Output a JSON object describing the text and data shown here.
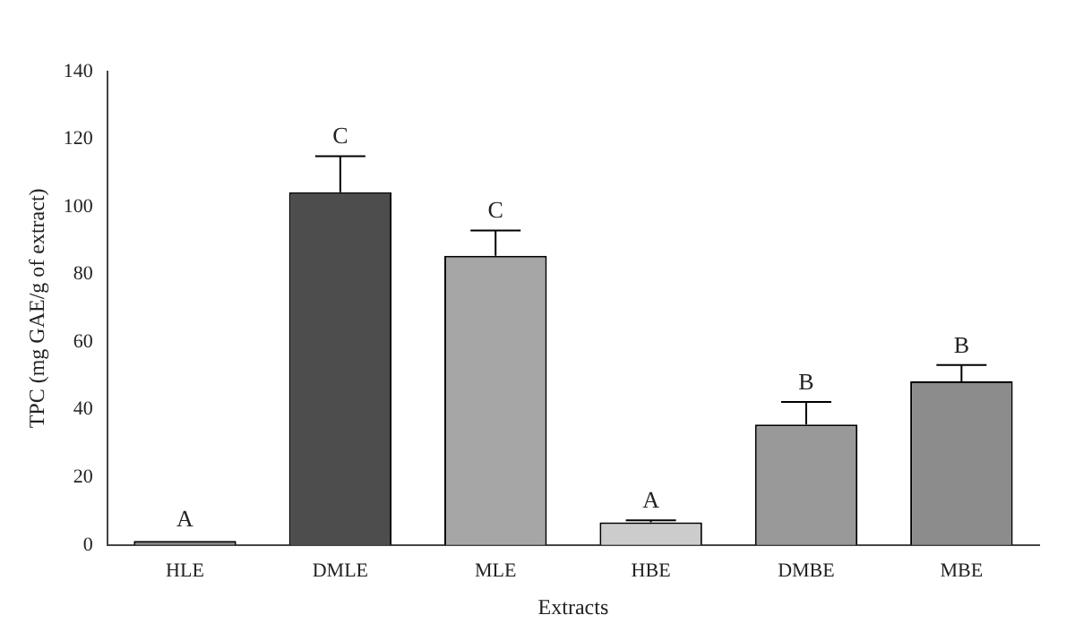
{
  "chart_data": {
    "type": "bar",
    "xlabel": "Extracts",
    "ylabel": "TPC (mg GAE/g of extract)",
    "categories": [
      "HLE",
      "DMLE",
      "MLE",
      "HBE",
      "DMBE",
      "MBE"
    ],
    "values": [
      1.2,
      104.3,
      85.5,
      6.7,
      35.6,
      48.4
    ],
    "errors": [
      null,
      10.7,
      7.5,
      0.6,
      6.7,
      4.8
    ],
    "colors": [
      "#808080",
      "#4d4d4d",
      "#a6a6a6",
      "#cccccc",
      "#999999",
      "#8c8c8c"
    ],
    "ylim": [
      0,
      140
    ],
    "yticks": [
      0,
      20,
      40,
      60,
      80,
      100,
      120,
      140
    ],
    "grid": false,
    "legend": false,
    "annotations": [
      {
        "text": "A",
        "x": "HLE",
        "y": 1.7
      },
      {
        "text": "C",
        "x": "DMLE",
        "y": 115
      },
      {
        "text": "C",
        "x": "MLE",
        "y": 93
      },
      {
        "text": "A",
        "x": "HBE",
        "y": 7.3
      },
      {
        "text": "B",
        "x": "DMBE",
        "y": 42.3
      },
      {
        "text": "B",
        "x": "MBE",
        "y": 53.2
      }
    ]
  }
}
